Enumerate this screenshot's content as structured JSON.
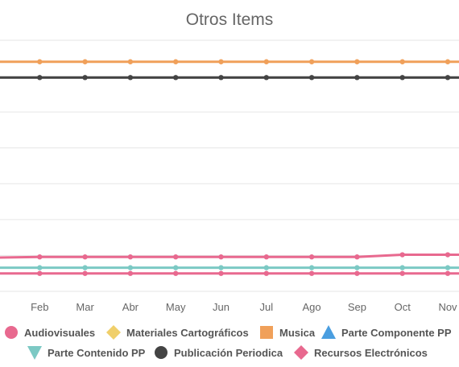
{
  "chart_data": {
    "type": "line",
    "title": "Otros Items",
    "categories": [
      "Ene",
      "Feb",
      "Mar",
      "Abr",
      "May",
      "Jun",
      "Jul",
      "Ago",
      "Sep",
      "Oct",
      "Nov"
    ],
    "visible_tick_labels": [
      "e",
      "Feb",
      "Mar",
      "Abr",
      "May",
      "Jun",
      "Jul",
      "Ago",
      "Sep",
      "Oct",
      "Nov"
    ],
    "ylim": [
      0,
      350
    ],
    "grid": true,
    "legend_position": "bottom",
    "series": [
      {
        "name": "Audiovisuales",
        "color": "#e8698f",
        "marker": "circle",
        "values": [
          47,
          48,
          48,
          48,
          48,
          48,
          48,
          48,
          48,
          51,
          51
        ]
      },
      {
        "name": "Materiales Cartográficos",
        "color": "#f0cf6a",
        "marker": "diamond",
        "values": [
          null,
          null,
          null,
          null,
          null,
          null,
          null,
          null,
          null,
          null,
          null
        ]
      },
      {
        "name": "Musica",
        "color": "#f0a05a",
        "marker": "square",
        "values": [
          320,
          320,
          320,
          320,
          320,
          320,
          320,
          320,
          320,
          320,
          320
        ]
      },
      {
        "name": "Parte Componente PP",
        "color": "#4a9ee0",
        "marker": "triangle",
        "values": [
          null,
          null,
          null,
          null,
          null,
          null,
          null,
          null,
          null,
          null,
          null
        ]
      },
      {
        "name": "Parte Contenido PP",
        "color": "#7cc9c4",
        "marker": "triangle-down",
        "values": [
          33,
          33,
          33,
          33,
          33,
          33,
          33,
          33,
          33,
          33,
          33
        ]
      },
      {
        "name": "Publicación Periodica",
        "color": "#444444",
        "marker": "circle",
        "values": [
          298,
          298,
          298,
          298,
          298,
          298,
          298,
          298,
          298,
          298,
          298
        ]
      },
      {
        "name": "Recursos Electrónicos",
        "color": "#e8698f",
        "marker": "diamond",
        "values": [
          25,
          25,
          25,
          25,
          25,
          25,
          25,
          25,
          25,
          25,
          25
        ]
      }
    ]
  }
}
